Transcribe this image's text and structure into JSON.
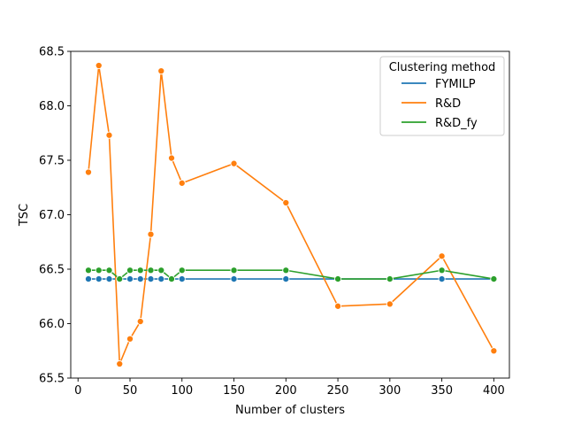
{
  "chart_data": {
    "type": "line",
    "xlabel": "Number of clusters",
    "ylabel": "TSC",
    "xlim": [
      -7,
      415
    ],
    "ylim": [
      65.5,
      68.5
    ],
    "xticks": [
      0,
      50,
      100,
      150,
      200,
      250,
      300,
      350,
      400
    ],
    "yticks": [
      65.5,
      66.0,
      66.5,
      67.0,
      67.5,
      68.0,
      68.5
    ],
    "ytick_labels": [
      "65.5",
      "66.0",
      "66.5",
      "67.0",
      "67.5",
      "68.0",
      "68.5"
    ],
    "grid": false,
    "legend": {
      "title": "Clustering method",
      "placement": "top-right"
    },
    "series": [
      {
        "name": "FYMILP",
        "color": "#1f77b4",
        "x": [
          10,
          20,
          30,
          40,
          50,
          60,
          70,
          80,
          90,
          100,
          150,
          200,
          250,
          300,
          350,
          400
        ],
        "y": [
          66.41,
          66.41,
          66.41,
          66.41,
          66.41,
          66.41,
          66.41,
          66.41,
          66.41,
          66.41,
          66.41,
          66.41,
          66.41,
          66.41,
          66.41,
          66.41
        ]
      },
      {
        "name": "R&D",
        "color": "#ff7f0e",
        "x": [
          10,
          20,
          30,
          40,
          50,
          60,
          70,
          80,
          90,
          100,
          150,
          200,
          250,
          300,
          350,
          400
        ],
        "y": [
          67.39,
          68.37,
          67.73,
          65.63,
          65.86,
          66.02,
          66.82,
          68.32,
          67.52,
          67.29,
          67.47,
          67.11,
          66.16,
          66.18,
          66.62,
          65.75
        ]
      },
      {
        "name": "R&D_fy",
        "color": "#2ca02c",
        "x": [
          10,
          20,
          30,
          40,
          50,
          60,
          70,
          80,
          90,
          100,
          150,
          200,
          250,
          300,
          350,
          400
        ],
        "y": [
          66.49,
          66.49,
          66.49,
          66.41,
          66.49,
          66.49,
          66.49,
          66.49,
          66.41,
          66.49,
          66.49,
          66.49,
          66.41,
          66.41,
          66.49,
          66.41
        ]
      }
    ]
  }
}
